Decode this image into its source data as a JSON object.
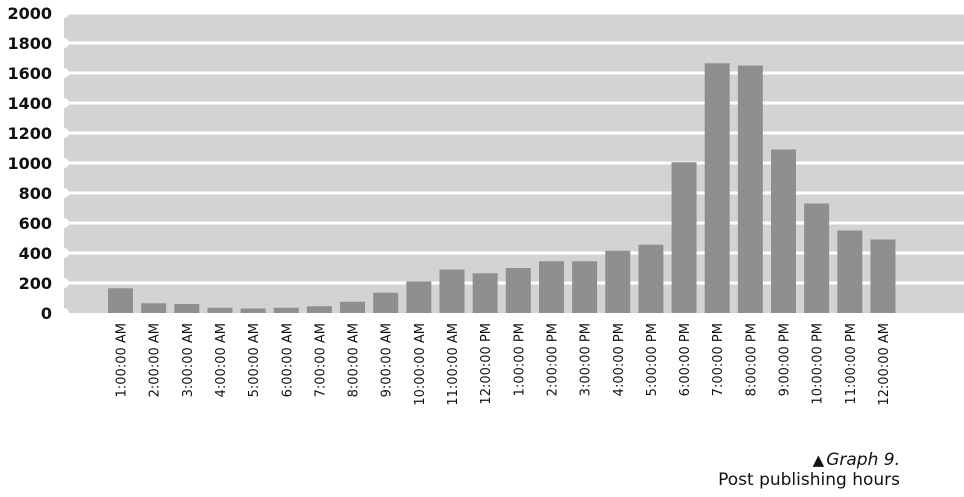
{
  "chart_data": {
    "type": "bar",
    "title": "",
    "xlabel": "",
    "ylabel": "",
    "ylim": [
      0,
      2000
    ],
    "yticks": [
      0,
      200,
      400,
      600,
      800,
      1000,
      1200,
      1400,
      1600,
      1800,
      2000
    ],
    "grid": true,
    "legend": "none",
    "categories": [
      "1:00:00 AM",
      "2:00:00 AM",
      "3:00:00 AM",
      "4:00:00 AM",
      "5:00:00 AM",
      "6:00:00 AM",
      "7:00:00 AM",
      "8:00:00 AM",
      "9:00:00 AM",
      "10:00:00 AM",
      "11:00:00 AM",
      "12:00:00 PM",
      "1:00:00 PM",
      "2:00:00 PM",
      "3:00:00 PM",
      "4:00:00 PM",
      "5:00:00 PM",
      "6:00:00 PM",
      "7:00:00 PM",
      "8:00:00 PM",
      "9:00:00 PM",
      "10:00:00 PM",
      "11:00:00 PM",
      "12:00:00 AM"
    ],
    "values": [
      165,
      65,
      60,
      35,
      30,
      35,
      45,
      75,
      135,
      210,
      290,
      265,
      300,
      345,
      345,
      415,
      455,
      1005,
      1665,
      1650,
      1090,
      730,
      550,
      490
    ],
    "colors": {
      "bar": "#8f8f8f",
      "plot_background": "#d3d3d3",
      "gridline": "#ffffff",
      "text": "#111111"
    }
  },
  "caption": {
    "marker": "▲",
    "graph_label": "Graph 9.",
    "description": "Post publishing hours"
  }
}
